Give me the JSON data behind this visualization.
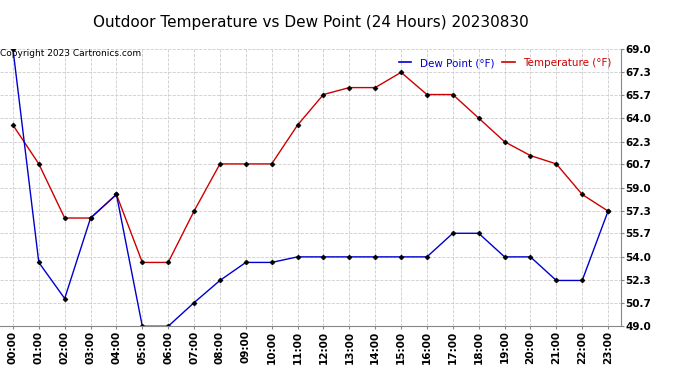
{
  "title": "Outdoor Temperature vs Dew Point (24 Hours) 20230830",
  "copyright_text": "Copyright 2023 Cartronics.com",
  "legend_dew": "Dew Point (°F)",
  "legend_temp": "Temperature (°F)",
  "hours": [
    "00:00",
    "01:00",
    "02:00",
    "03:00",
    "04:00",
    "05:00",
    "06:00",
    "07:00",
    "08:00",
    "09:00",
    "10:00",
    "11:00",
    "12:00",
    "13:00",
    "14:00",
    "15:00",
    "16:00",
    "17:00",
    "18:00",
    "19:00",
    "20:00",
    "21:00",
    "22:00",
    "23:00"
  ],
  "temperature": [
    63.5,
    60.7,
    56.8,
    56.8,
    58.5,
    53.6,
    53.6,
    57.3,
    60.7,
    60.7,
    60.7,
    63.5,
    65.7,
    66.2,
    66.2,
    67.3,
    65.7,
    65.7,
    64.0,
    62.3,
    61.3,
    60.7,
    58.5,
    57.3
  ],
  "dew_point": [
    69.0,
    53.6,
    51.0,
    56.8,
    58.5,
    49.0,
    49.0,
    50.7,
    52.3,
    53.6,
    53.6,
    54.0,
    54.0,
    54.0,
    54.0,
    54.0,
    54.0,
    55.7,
    55.7,
    54.0,
    54.0,
    52.3,
    52.3,
    57.3
  ],
  "temp_color": "#cc0000",
  "dew_color": "#0000cc",
  "ylim_min": 49.0,
  "ylim_max": 69.0,
  "yticks": [
    49.0,
    50.7,
    52.3,
    54.0,
    55.7,
    57.3,
    59.0,
    60.7,
    62.3,
    64.0,
    65.7,
    67.3,
    69.0
  ],
  "bg_color": "#ffffff",
  "grid_color": "#cccccc",
  "title_fontsize": 11,
  "axis_fontsize": 7.5,
  "legend_fontsize": 7.5,
  "copyright_fontsize": 6.5,
  "marker": "D",
  "marker_size": 2.5,
  "line_width": 1.0
}
